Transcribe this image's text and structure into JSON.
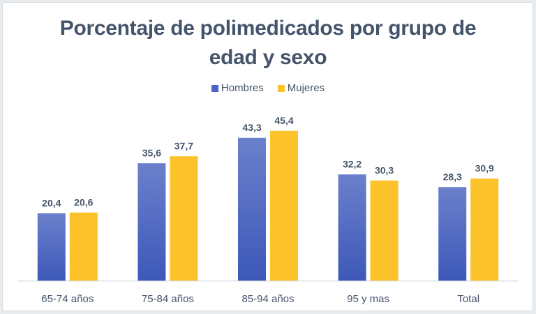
{
  "chart_data": {
    "type": "bar",
    "title": "Porcentaje de polimedicados por grupo de edad y sexo",
    "title_lines": [
      "Porcentaje de polimedicados por grupo de",
      "edad y sexo"
    ],
    "categories": [
      "65-74 años",
      "75-84 años",
      "85-94 años",
      "95 y mas",
      "Total"
    ],
    "series": [
      {
        "name": "Hombres",
        "color": "#4a64c4",
        "values": [
          20.4,
          35.6,
          43.3,
          32.2,
          28.3
        ],
        "labels": [
          "20,4",
          "35,6",
          "43,3",
          "32,2",
          "28,3"
        ]
      },
      {
        "name": "Mujeres",
        "color": "#fbc22a",
        "values": [
          20.6,
          37.7,
          45.4,
          30.3,
          30.9
        ],
        "labels": [
          "20,6",
          "37,7",
          "45,4",
          "30,3",
          "30,9"
        ]
      }
    ],
    "xlabel": "",
    "ylabel": "",
    "ylim": [
      0,
      50
    ],
    "grid": false,
    "legend_position": "top"
  }
}
